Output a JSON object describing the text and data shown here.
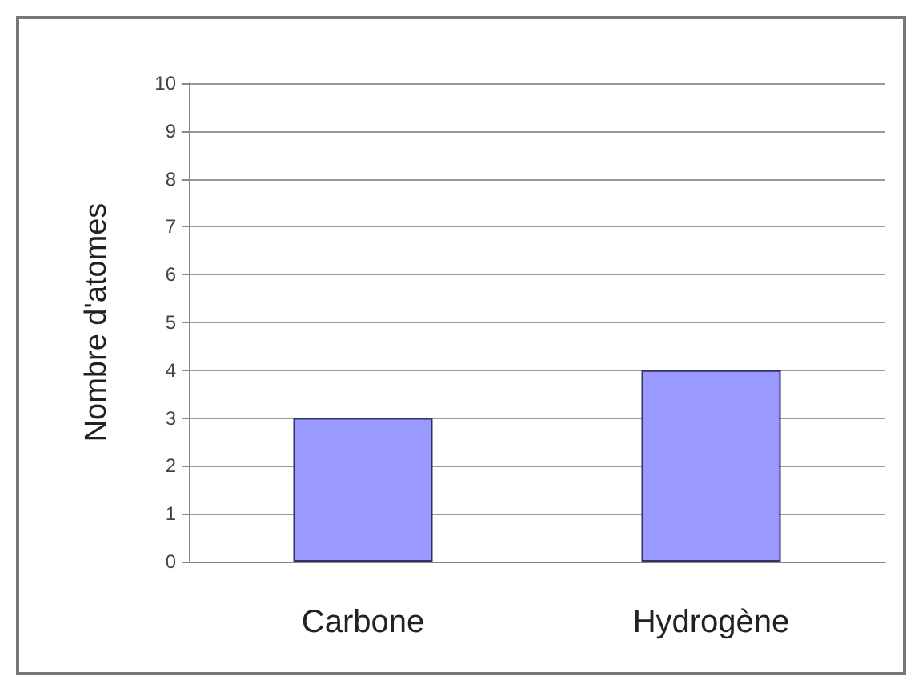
{
  "chart_data": {
    "type": "bar",
    "ylabel": "Nombre d'atomes",
    "categories": [
      "Carbone",
      "Hydrogène"
    ],
    "values": [
      3,
      4
    ],
    "color": "#9999ff",
    "ylim": [
      0,
      10
    ],
    "yticks": [
      0,
      1,
      2,
      3,
      4,
      5,
      6,
      7,
      8,
      9,
      10
    ],
    "grid": "y"
  }
}
